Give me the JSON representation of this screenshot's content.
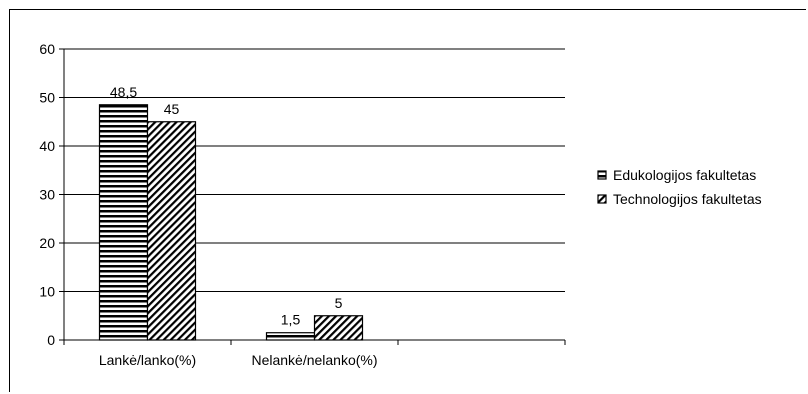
{
  "chart_data": {
    "type": "bar",
    "title": "",
    "xlabel": "",
    "ylabel": "",
    "categories": [
      "Lankė/lanko(%)",
      "Nelankė/nelanko(%)"
    ],
    "series": [
      {
        "name": "Edukologijos fakultetas",
        "values": [
          48.5,
          1.5
        ],
        "labels": [
          "48,5",
          "1,5"
        ],
        "pattern": "horizontal-stripes"
      },
      {
        "name": "Technologijos fakultetas",
        "values": [
          45,
          5
        ],
        "labels": [
          "45",
          "5"
        ],
        "pattern": "diagonal-hatch"
      }
    ],
    "ylim": [
      0,
      60
    ],
    "yticks": [
      0,
      10,
      20,
      30,
      40,
      50,
      60
    ],
    "grid": true,
    "legend": "right"
  }
}
